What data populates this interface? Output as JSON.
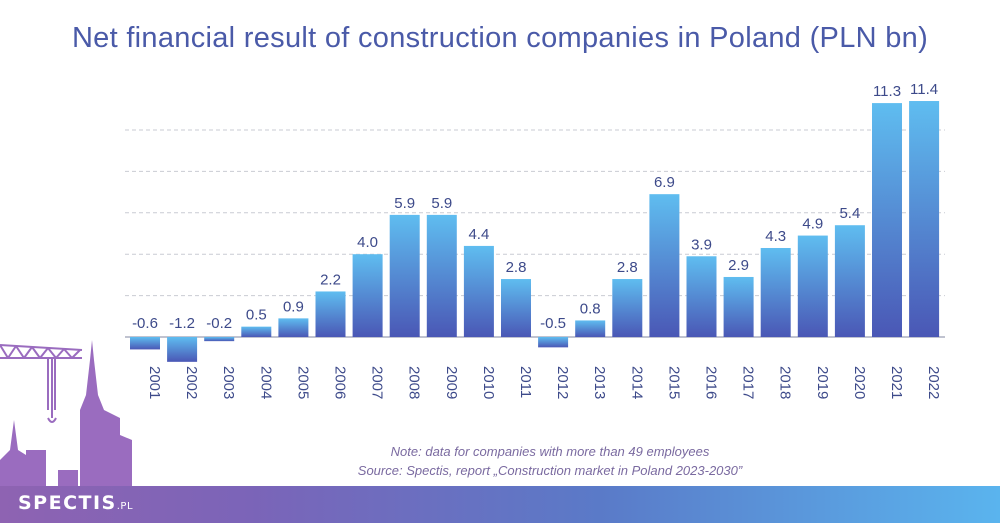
{
  "title": "Net financial result of construction companies in Poland (PLN bn)",
  "note": "Note: data for companies with more than 49 employees",
  "source": "Source: Spectis, report „Construction market in Poland 2023-2030”",
  "logo": {
    "text": "SPECTIS",
    "suffix": ".PL"
  },
  "colors": {
    "title": "#4a5aa8",
    "bar_top": "#5fbdf0",
    "bar_bottom": "#4a57b5",
    "label": "#3d4a8a",
    "grid": "#c9cbd3",
    "skyline": "#9a6cbf"
  },
  "icons": [
    "crane-icon",
    "city-skyline-icon"
  ],
  "chart_data": {
    "type": "bar",
    "title": "Net financial result of construction companies in Poland (PLN bn)",
    "categories": [
      "2001",
      "2002",
      "2003",
      "2004",
      "2005",
      "2006",
      "2007",
      "2008",
      "2009",
      "2010",
      "2011",
      "2012",
      "2013",
      "2014",
      "2015",
      "2016",
      "2017",
      "2018",
      "2019",
      "2020",
      "2021",
      "2022"
    ],
    "values": [
      -0.6,
      -1.2,
      -0.2,
      0.5,
      0.9,
      2.2,
      4.0,
      5.9,
      5.9,
      4.4,
      2.8,
      -0.5,
      0.8,
      2.8,
      6.9,
      3.9,
      2.9,
      4.3,
      4.9,
      5.4,
      11.3,
      11.4
    ],
    "value_labels": [
      "-0.6",
      "-1.2",
      "-0.2",
      "0.5",
      "0.9",
      "2.2",
      "4.0",
      "5.9",
      "5.9",
      "4.4",
      "2.8",
      "-0.5",
      "0.8",
      "2.8",
      "6.9",
      "3.9",
      "2.9",
      "4.3",
      "4.9",
      "5.4",
      "11.3",
      "11.4"
    ],
    "ylim": [
      -1.5,
      12
    ],
    "grid": true,
    "xlabel": "",
    "ylabel": ""
  }
}
